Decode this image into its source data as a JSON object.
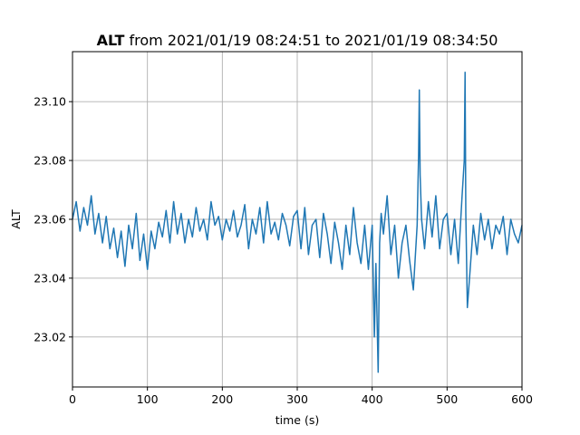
{
  "chart_data": {
    "type": "line",
    "title": {
      "bold": "ALT",
      "rest": " from 2021/01/19 08:24:51 to 2021/01/19 08:34:50"
    },
    "xlabel": "time (s)",
    "ylabel": "ALT",
    "xlim": [
      0,
      600
    ],
    "ylim": [
      23.003,
      23.117
    ],
    "x_ticks": [
      0,
      100,
      200,
      300,
      400,
      500,
      600
    ],
    "x_tick_labels": [
      "0",
      "100",
      "200",
      "300",
      "400",
      "500",
      "600"
    ],
    "y_ticks": [
      23.02,
      23.04,
      23.06,
      23.08,
      23.1
    ],
    "y_tick_labels": [
      "23.02",
      "23.04",
      "23.06",
      "23.08",
      "23.10"
    ],
    "grid": true,
    "line_color": "#1f77b4",
    "series": [
      {
        "x": [
          0,
          5,
          10,
          15,
          20,
          25,
          30,
          35,
          40,
          45,
          50,
          55,
          60,
          65,
          70,
          75,
          80,
          85,
          90,
          95,
          100,
          105,
          110,
          115,
          120,
          125,
          130,
          135,
          140,
          145,
          150,
          155,
          160,
          165,
          170,
          175,
          180,
          185,
          190,
          195,
          200,
          205,
          210,
          215,
          220,
          225,
          230,
          235,
          240,
          245,
          250,
          255,
          260,
          265,
          270,
          275,
          280,
          285,
          290,
          295,
          300,
          305,
          310,
          315,
          320,
          325,
          330,
          335,
          340,
          345,
          350,
          355,
          360,
          365,
          370,
          375,
          380,
          385,
          390,
          395,
          400,
          403,
          405,
          408,
          410,
          412,
          415,
          420,
          425,
          430,
          435,
          440,
          445,
          450,
          455,
          460,
          462,
          463,
          464,
          466,
          470,
          475,
          480,
          485,
          490,
          495,
          500,
          505,
          510,
          515,
          520,
          523,
          524,
          525,
          527,
          530,
          535,
          540,
          545,
          550,
          555,
          560,
          565,
          570,
          575,
          580,
          585,
          590,
          595,
          600
        ],
        "y": [
          23.06,
          23.066,
          23.056,
          23.064,
          23.058,
          23.068,
          23.055,
          23.062,
          23.052,
          23.061,
          23.05,
          23.057,
          23.047,
          23.056,
          23.044,
          23.058,
          23.05,
          23.062,
          23.046,
          23.055,
          23.043,
          23.056,
          23.05,
          23.059,
          23.054,
          23.063,
          23.052,
          23.066,
          23.055,
          23.062,
          23.052,
          23.06,
          23.054,
          23.064,
          23.056,
          23.06,
          23.053,
          23.066,
          23.058,
          23.061,
          23.053,
          23.06,
          23.056,
          23.063,
          23.054,
          23.058,
          23.065,
          23.05,
          23.06,
          23.055,
          23.064,
          23.052,
          23.066,
          23.055,
          23.059,
          23.053,
          23.062,
          23.058,
          23.051,
          23.061,
          23.063,
          23.05,
          23.064,
          23.048,
          23.058,
          23.06,
          23.047,
          23.062,
          23.055,
          23.045,
          23.059,
          23.052,
          23.043,
          23.058,
          23.048,
          23.064,
          23.052,
          23.045,
          23.058,
          23.043,
          23.058,
          23.02,
          23.045,
          23.008,
          23.052,
          23.062,
          23.055,
          23.068,
          23.048,
          23.058,
          23.04,
          23.052,
          23.058,
          23.046,
          23.036,
          23.058,
          23.082,
          23.104,
          23.075,
          23.06,
          23.05,
          23.066,
          23.054,
          23.068,
          23.05,
          23.06,
          23.062,
          23.048,
          23.06,
          23.045,
          23.068,
          23.08,
          23.11,
          23.062,
          23.03,
          23.04,
          23.058,
          23.048,
          23.062,
          23.053,
          23.06,
          23.05,
          23.058,
          23.055,
          23.061,
          23.048,
          23.06,
          23.055,
          23.052,
          23.058
        ]
      }
    ]
  }
}
